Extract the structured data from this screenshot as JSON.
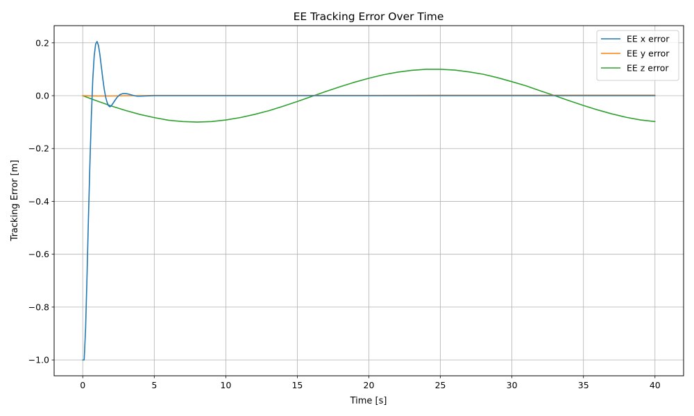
{
  "chart_data": {
    "type": "line",
    "title": "EE Tracking Error Over Time",
    "xlabel": "Time [s]",
    "ylabel": "Tracking Error [m]",
    "xlim": [
      -2,
      42
    ],
    "ylim": [
      -1.06,
      0.265
    ],
    "xticks": [
      0,
      5,
      10,
      15,
      20,
      25,
      30,
      35,
      40
    ],
    "yticks": [
      -1.0,
      -0.8,
      -0.6,
      -0.4,
      -0.2,
      0.0,
      0.2
    ],
    "ytick_labels": [
      "−1.0",
      "−0.8",
      "−0.6",
      "−0.4",
      "−0.2",
      "0.0",
      "0.2"
    ],
    "grid": true,
    "legend_position": "top-right",
    "series": [
      {
        "name": "EE x error",
        "color": "#1f77b4",
        "x": [
          0,
          0.1,
          0.2,
          0.3,
          0.4,
          0.5,
          0.6,
          0.7,
          0.8,
          0.9,
          1.0,
          1.1,
          1.2,
          1.3,
          1.4,
          1.5,
          1.6,
          1.7,
          1.8,
          1.9,
          2.0,
          2.2,
          2.4,
          2.6,
          2.8,
          3.0,
          3.2,
          3.4,
          3.6,
          3.8,
          4.0,
          4.5,
          5,
          10,
          15,
          20,
          25,
          30,
          35,
          40
        ],
        "y": [
          -1.0,
          -1.0,
          -0.88,
          -0.68,
          -0.46,
          -0.26,
          -0.08,
          0.06,
          0.15,
          0.195,
          0.205,
          0.19,
          0.155,
          0.11,
          0.065,
          0.025,
          -0.005,
          -0.025,
          -0.038,
          -0.042,
          -0.038,
          -0.022,
          -0.006,
          0.004,
          0.008,
          0.008,
          0.006,
          0.003,
          0.0,
          -0.002,
          -0.002,
          -0.001,
          0.0,
          0.0,
          0.0,
          0.0,
          0.0,
          0.0,
          0.0,
          0.0
        ]
      },
      {
        "name": "EE y error",
        "color": "#ff7f0e",
        "x": [
          0,
          1,
          2,
          3,
          4,
          5,
          10,
          15,
          20,
          25,
          30,
          35,
          40
        ],
        "y": [
          0.0,
          -0.001,
          -0.001,
          0.0,
          0.0,
          0.001,
          0.001,
          0.001,
          0.001,
          0.0015,
          0.0015,
          0.002,
          0.002
        ]
      },
      {
        "name": "EE z error",
        "color": "#2ca02c",
        "x": [
          0,
          1,
          2,
          3,
          4,
          5,
          6,
          7,
          8,
          9,
          10,
          11,
          12,
          13,
          14,
          15,
          16,
          17,
          18,
          19,
          20,
          21,
          22,
          23,
          24,
          25,
          26,
          27,
          28,
          29,
          30,
          31,
          32,
          33,
          34,
          35,
          36,
          37,
          38,
          39,
          40
        ],
        "y": [
          0.0,
          -0.02,
          -0.039,
          -0.056,
          -0.071,
          -0.083,
          -0.093,
          -0.098,
          -0.1,
          -0.098,
          -0.092,
          -0.083,
          -0.071,
          -0.057,
          -0.04,
          -0.022,
          -0.003,
          0.016,
          0.034,
          0.051,
          0.066,
          0.079,
          0.089,
          0.096,
          0.1,
          0.1,
          0.097,
          0.09,
          0.081,
          0.068,
          0.053,
          0.037,
          0.018,
          0.0,
          -0.019,
          -0.037,
          -0.054,
          -0.069,
          -0.082,
          -0.092,
          -0.098
        ]
      }
    ]
  }
}
